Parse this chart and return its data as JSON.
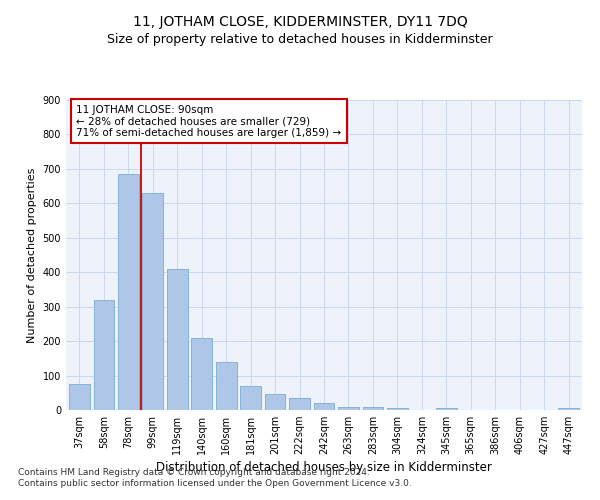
{
  "title": "11, JOTHAM CLOSE, KIDDERMINSTER, DY11 7DQ",
  "subtitle": "Size of property relative to detached houses in Kidderminster",
  "xlabel": "Distribution of detached houses by size in Kidderminster",
  "ylabel": "Number of detached properties",
  "categories": [
    "37sqm",
    "58sqm",
    "78sqm",
    "99sqm",
    "119sqm",
    "140sqm",
    "160sqm",
    "181sqm",
    "201sqm",
    "222sqm",
    "242sqm",
    "263sqm",
    "283sqm",
    "304sqm",
    "324sqm",
    "345sqm",
    "365sqm",
    "386sqm",
    "406sqm",
    "427sqm",
    "447sqm"
  ],
  "values": [
    75,
    320,
    685,
    630,
    410,
    210,
    140,
    70,
    47,
    35,
    20,
    10,
    8,
    5,
    0,
    5,
    0,
    0,
    0,
    0,
    7
  ],
  "bar_color": "#aec6e8",
  "bar_edge_color": "#7aadd4",
  "grid_color": "#ccd9ee",
  "background_color": "#eef2fb",
  "vline_color": "#cc0000",
  "annotation_text": "11 JOTHAM CLOSE: 90sqm\n← 28% of detached houses are smaller (729)\n71% of semi-detached houses are larger (1,859) →",
  "annotation_box_color": "#ffffff",
  "annotation_box_edge": "#cc0000",
  "ylim": [
    0,
    900
  ],
  "yticks": [
    0,
    100,
    200,
    300,
    400,
    500,
    600,
    700,
    800,
    900
  ],
  "footnote": "Contains HM Land Registry data © Crown copyright and database right 2024.\nContains public sector information licensed under the Open Government Licence v3.0.",
  "title_fontsize": 10,
  "subtitle_fontsize": 9,
  "xlabel_fontsize": 8.5,
  "ylabel_fontsize": 8,
  "tick_fontsize": 7,
  "annot_fontsize": 7.5,
  "footnote_fontsize": 6.5
}
